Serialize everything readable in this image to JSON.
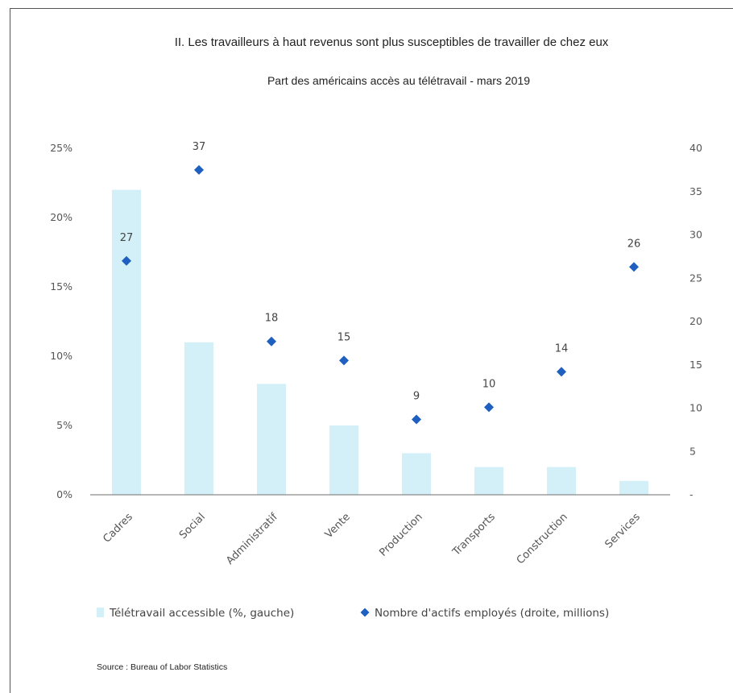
{
  "chart_data": {
    "type": "bar",
    "title": "II. Les travailleurs à haut revenus sont plus susceptibles de travailler de chez eux",
    "subtitle": "Part des américains accès au télétravail - mars 2019",
    "source": "Source : Bureau of Labor Statistics",
    "categories": [
      "Cadres",
      "Social",
      "Administratif",
      "Vente",
      "Production",
      "Transports",
      "Construction",
      "Services"
    ],
    "series": [
      {
        "name": "Télétravail accessible (%, gauche)",
        "kind": "bar",
        "axis": "left",
        "color": "#d3eff7",
        "values": [
          22,
          11,
          8,
          5,
          3,
          2,
          2,
          1
        ]
      },
      {
        "name": "Nombre d'actifs employés (droite, millions)",
        "kind": "scatter",
        "axis": "right",
        "marker": "diamond",
        "color": "#1f5fbf",
        "values": [
          27,
          37.5,
          17.7,
          15.5,
          8.7,
          10.1,
          14.2,
          26.3
        ],
        "labels": [
          "27",
          "37",
          "18",
          "15",
          "9",
          "10",
          "14",
          "26"
        ]
      }
    ],
    "left_axis": {
      "ylim": [
        0,
        25
      ],
      "ticks": [
        0,
        5,
        10,
        15,
        20,
        25
      ],
      "tick_labels": [
        "0%",
        "5%",
        "10%",
        "15%",
        "20%",
        "25%"
      ]
    },
    "right_axis": {
      "ylim": [
        0,
        40
      ],
      "ticks": [
        0,
        5,
        10,
        15,
        20,
        25,
        30,
        35,
        40
      ],
      "tick_labels": [
        "-",
        "5",
        "10",
        "15",
        "20",
        "25",
        "30",
        "35",
        "40"
      ]
    },
    "grid": false,
    "legend_position": "bottom"
  }
}
